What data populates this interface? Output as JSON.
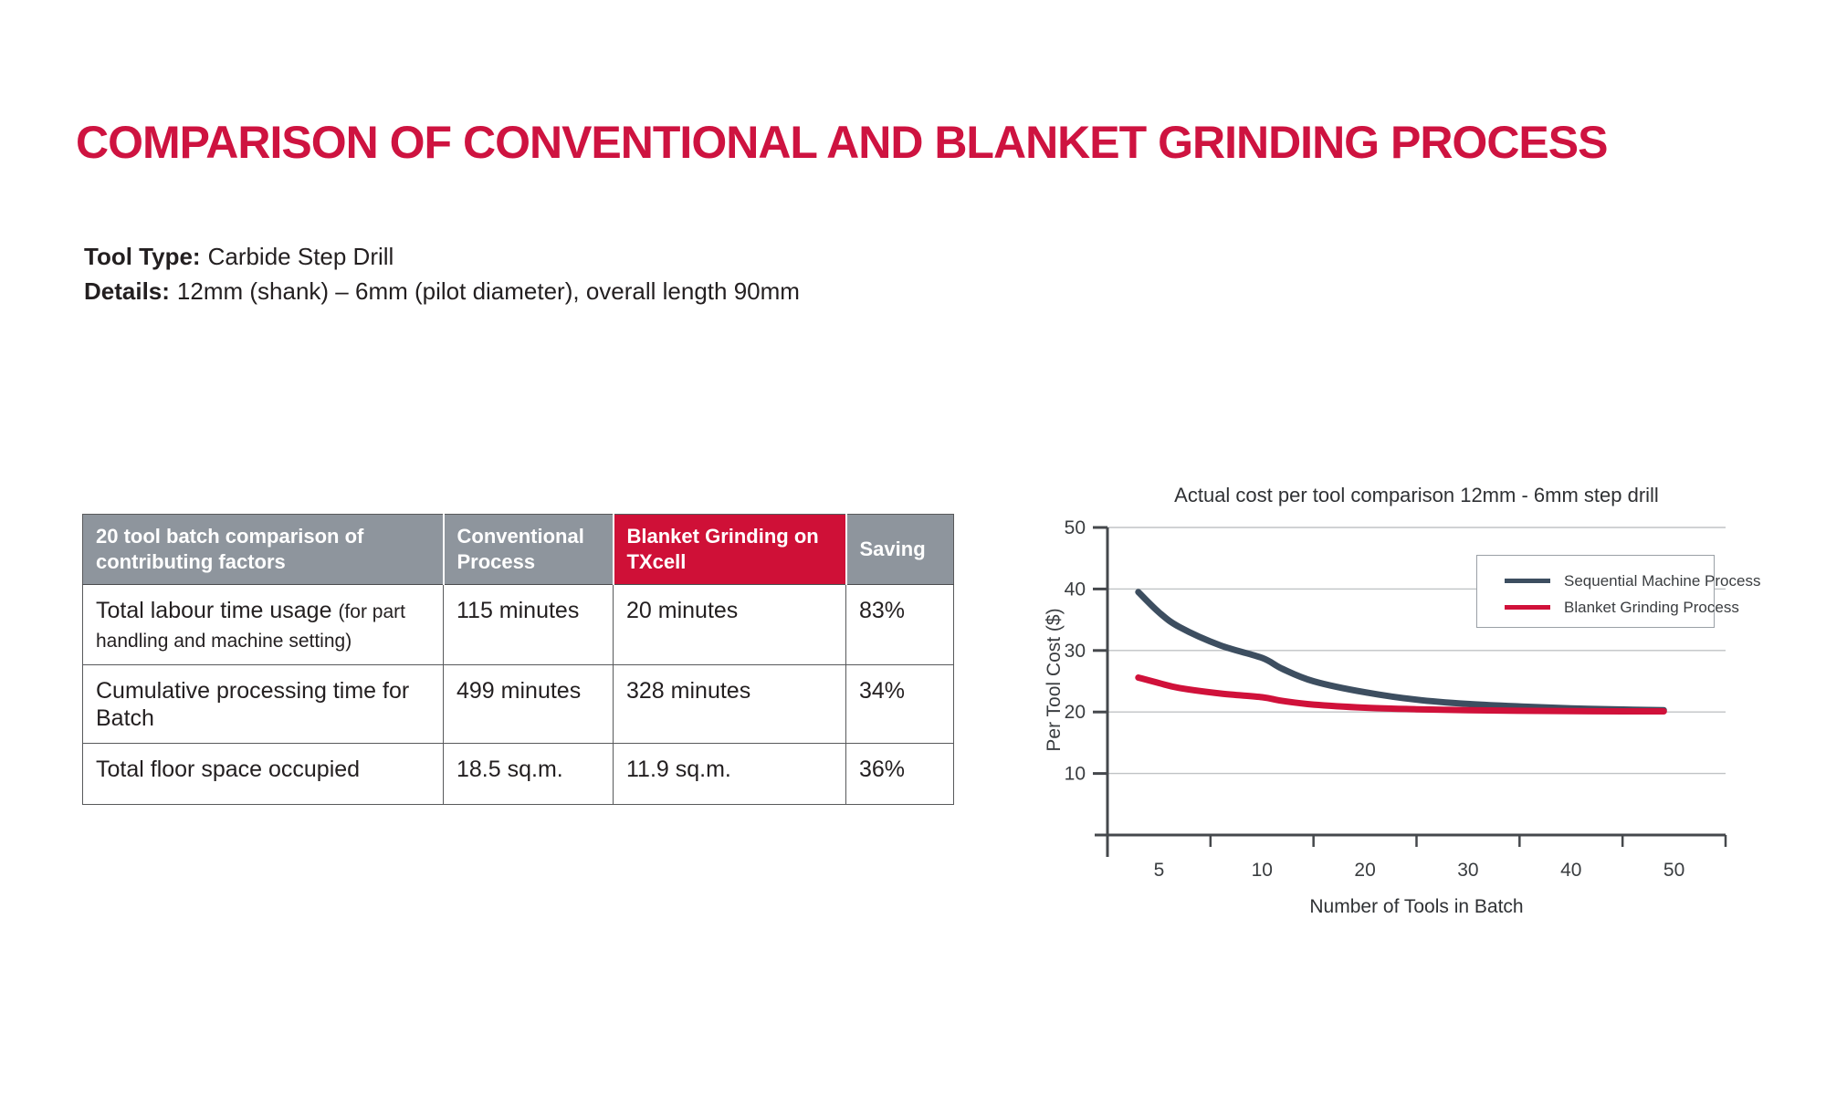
{
  "title": "COMPARISON OF CONVENTIONAL AND BLANKET GRINDING PROCESS",
  "colors": {
    "brand_red": "#ce1340",
    "header_red": "#cf1037",
    "header_gray": "#8e959d",
    "slate": "#3d4e60",
    "grid": "#c0c3c5",
    "axis": "#45484c",
    "text": "#231f20"
  },
  "specs": [
    {
      "label": "Tool Type:",
      "value": "Carbide Step Drill"
    },
    {
      "label": "Details:",
      "value": "12mm (shank) – 6mm (pilot diameter), overall length 90mm"
    }
  ],
  "table": {
    "columns": [
      {
        "label": "20 tool batch comparison of contributing factors"
      },
      {
        "label": "Conventional Process"
      },
      {
        "label": "Blanket Grinding on TXcell"
      },
      {
        "label": "Saving"
      }
    ],
    "rows": [
      {
        "factor": "Total labour time usage",
        "factor_note": "(for part handling and machine setting)",
        "conventional": "115 minutes",
        "blanket": "20 minutes",
        "saving": "83%"
      },
      {
        "factor": "Cumulative processing time for Batch",
        "factor_note": "",
        "conventional": "499 minutes",
        "blanket": "328 minutes",
        "saving": "34%"
      },
      {
        "factor": "Total floor space occupied",
        "factor_note": "",
        "conventional": "18.5 sq.m.",
        "blanket": "11.9 sq.m.",
        "saving": "36%"
      }
    ]
  },
  "chart_data": {
    "type": "line",
    "title": "Actual cost per tool comparison 12mm - 6mm step drill",
    "xlabel": "Number of Tools in Batch",
    "ylabel": "Per Tool Cost ($)",
    "x_ticks": [
      5,
      10,
      20,
      30,
      40,
      50
    ],
    "x_axis_note": "tick labels 5,10,20,30,40,50 are evenly spaced (non-linear scale)",
    "y_ticks": [
      10,
      20,
      30,
      40,
      50
    ],
    "ylim": [
      0,
      50
    ],
    "grid": "horizontal",
    "legend_position": "top-right",
    "series": [
      {
        "name": "Sequential Machine Process",
        "color": "#3d4e60",
        "x": [
          4,
          5,
          6,
          8,
          10,
          12,
          15,
          20,
          25,
          30,
          35,
          40,
          45,
          49
        ],
        "y": [
          39.5,
          36.2,
          33.8,
          30.8,
          28.8,
          27.0,
          25.0,
          23.2,
          22.0,
          21.3,
          20.9,
          20.6,
          20.4,
          20.3
        ]
      },
      {
        "name": "Blanket Grinding Process",
        "color": "#d0113a",
        "x": [
          4,
          5,
          6,
          8,
          10,
          12,
          15,
          20,
          25,
          30,
          35,
          40,
          45,
          49
        ],
        "y": [
          25.6,
          24.7,
          23.9,
          23.0,
          22.4,
          21.8,
          21.2,
          20.7,
          20.45,
          20.3,
          20.2,
          20.15,
          20.1,
          20.1
        ]
      }
    ]
  }
}
